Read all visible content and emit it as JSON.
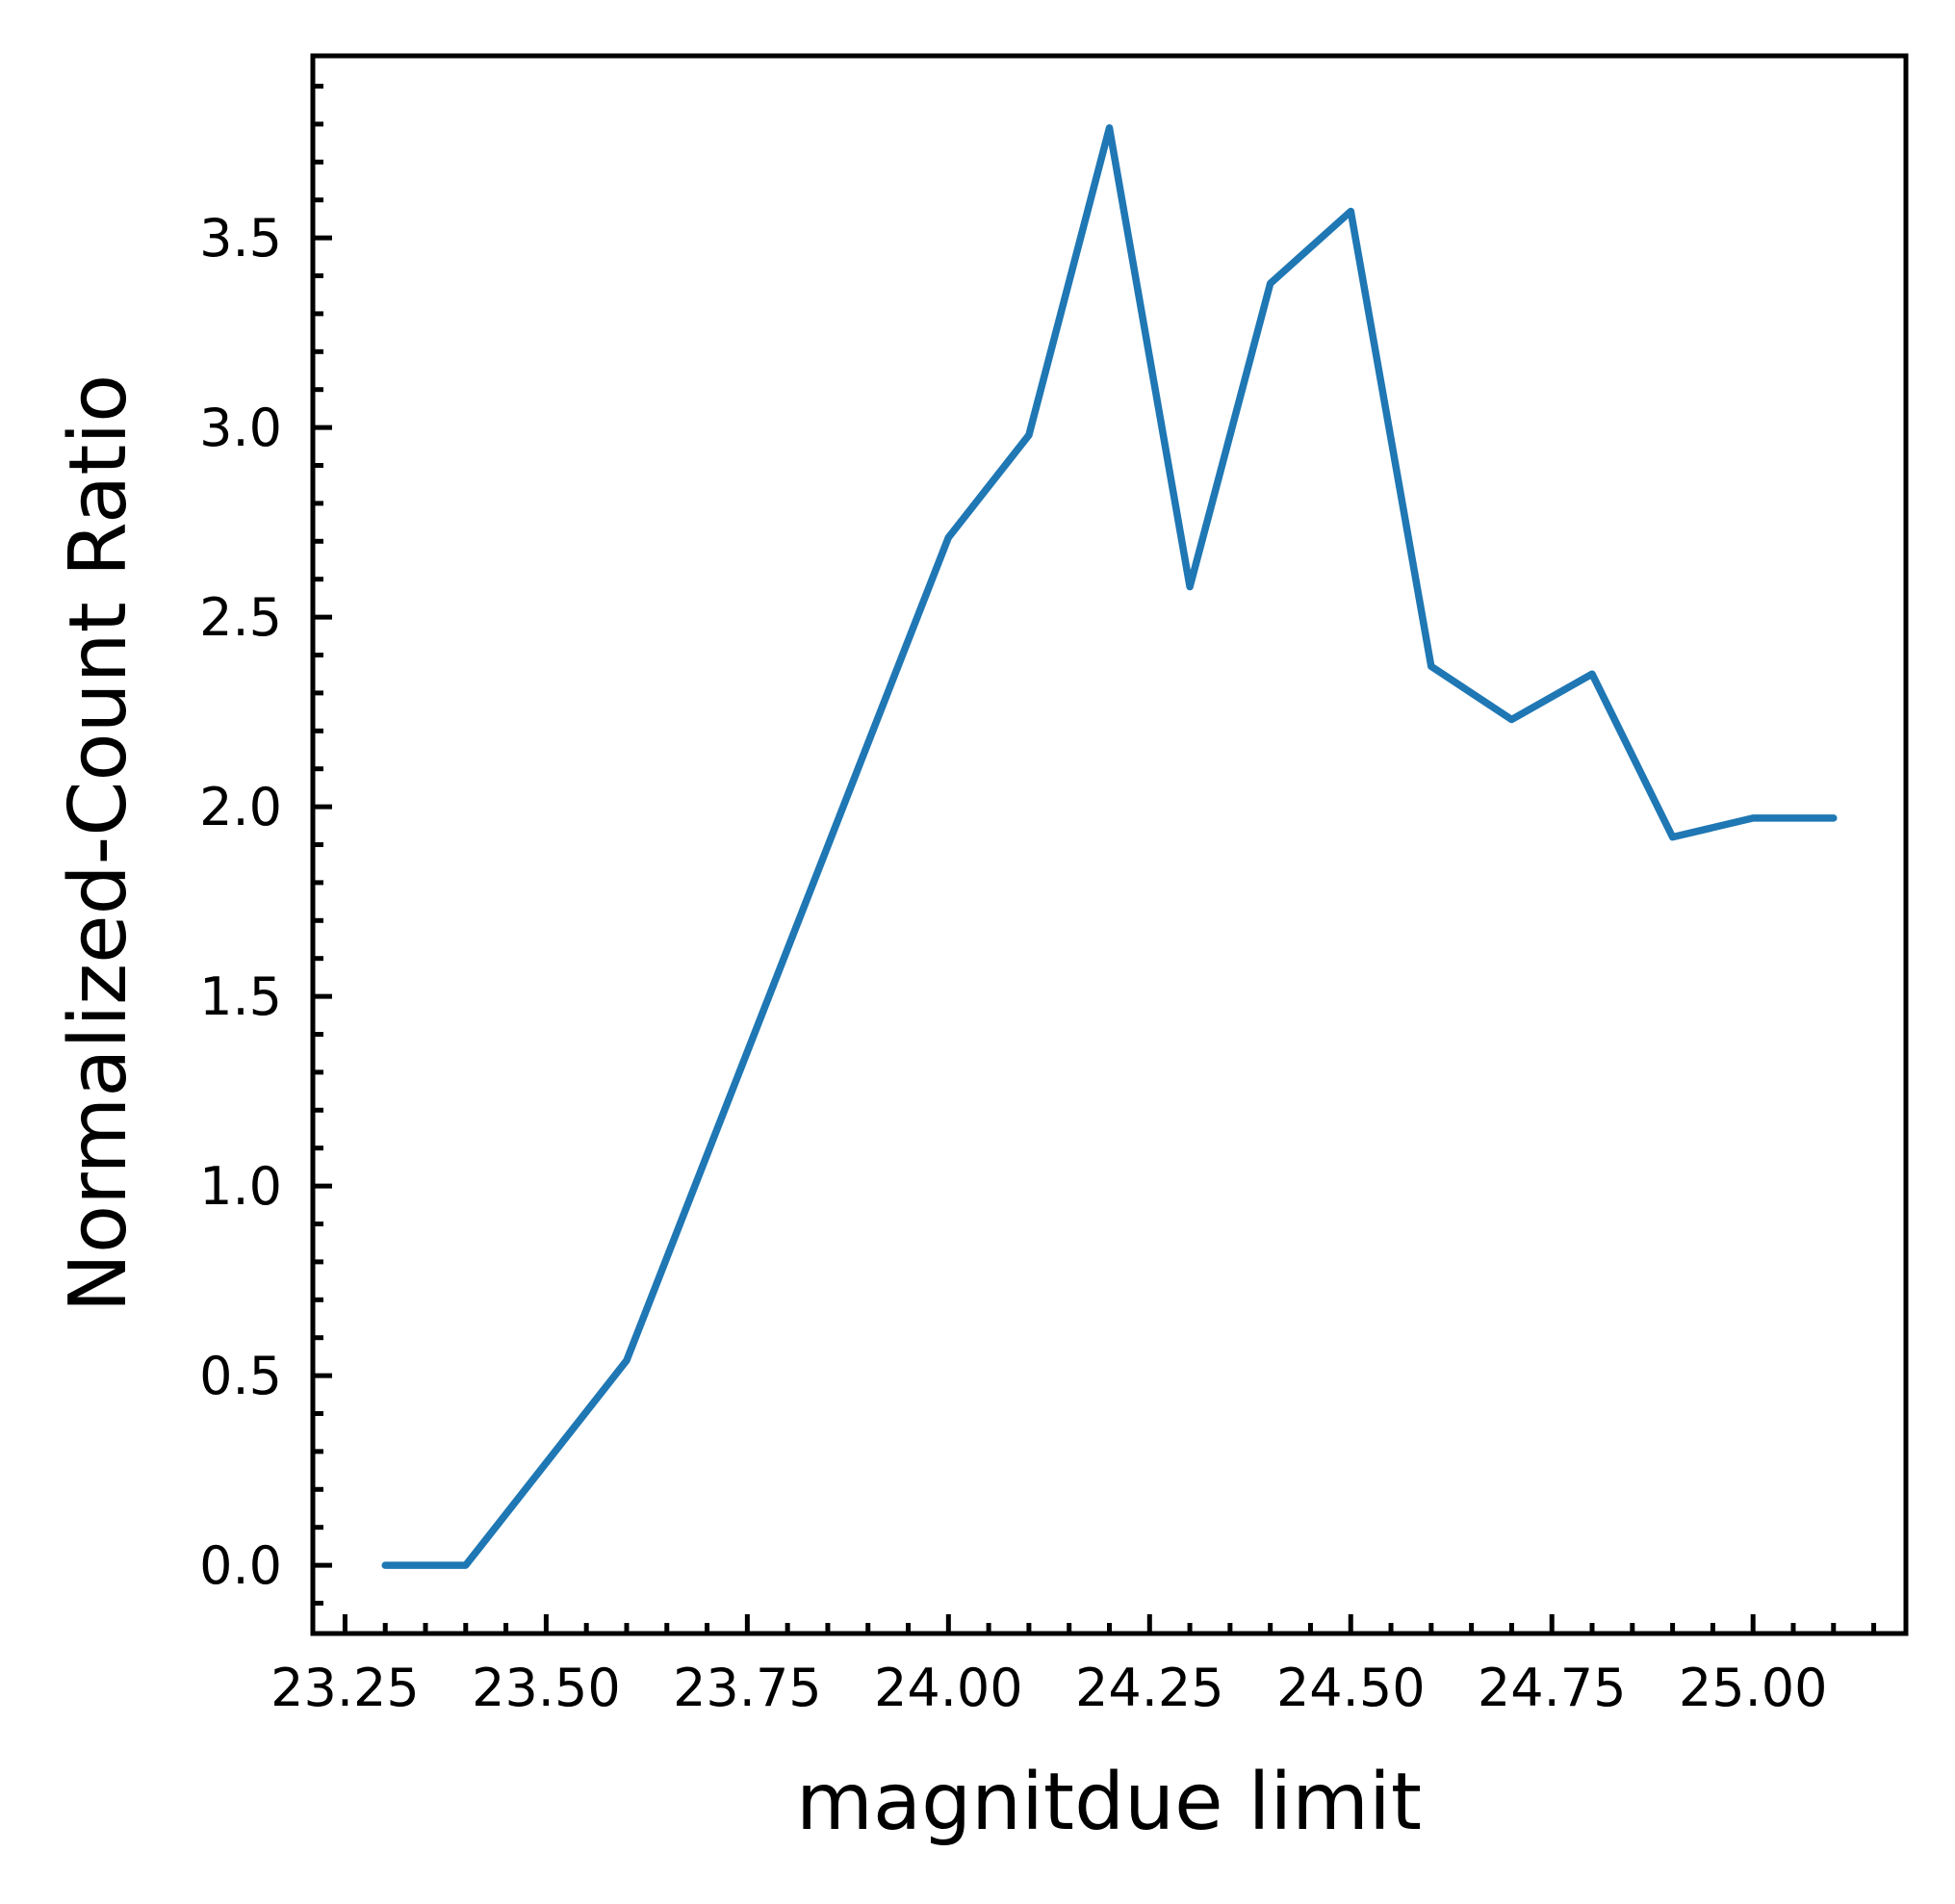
{
  "chart_data": {
    "type": "line",
    "title": "",
    "xlabel": "magnitdue limit",
    "ylabel": "Normalized-Count Ratio",
    "xlim": [
      23.21,
      25.19
    ],
    "ylim": [
      -0.18,
      3.98
    ],
    "xticks": [
      23.25,
      23.5,
      23.75,
      24.0,
      24.25,
      24.5,
      24.75,
      25.0
    ],
    "xtick_labels": [
      "23.25",
      "23.50",
      "23.75",
      "24.00",
      "24.25",
      "24.50",
      "24.75",
      "25.00"
    ],
    "x_minor_step": 0.05,
    "yticks": [
      0.0,
      0.5,
      1.0,
      1.5,
      2.0,
      2.5,
      3.0,
      3.5
    ],
    "ytick_labels": [
      "0.0",
      "0.5",
      "1.0",
      "1.5",
      "2.0",
      "2.5",
      "3.0",
      "3.5"
    ],
    "y_minor_step": 0.1,
    "grid": false,
    "ticks_direction": "in",
    "series": [
      {
        "color": "#1f77b4",
        "x": [
          23.3,
          23.4,
          23.6,
          24.0,
          24.1,
          24.2,
          24.3,
          24.4,
          24.5,
          24.6,
          24.7,
          24.8,
          24.9,
          25.0,
          25.1
        ],
        "y": [
          0.0,
          0.0,
          0.54,
          2.71,
          2.98,
          3.79,
          2.58,
          3.38,
          3.57,
          2.37,
          2.23,
          2.35,
          1.92,
          1.97,
          1.97
        ]
      }
    ]
  }
}
